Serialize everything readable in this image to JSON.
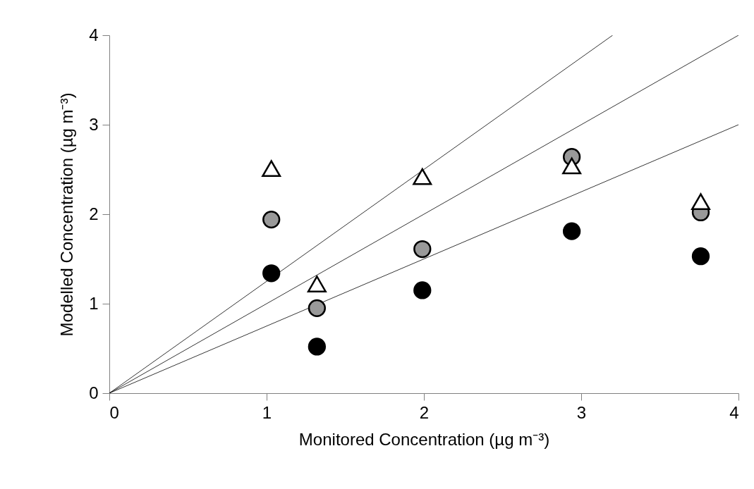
{
  "chart_data": {
    "type": "scatter",
    "xlabel": "Monitored Concentration (µg m⁻³)",
    "ylabel": "Modelled Concentration (µg m⁻³)",
    "xlim": [
      0,
      4
    ],
    "ylim": [
      0,
      4
    ],
    "xticks": [
      0,
      1,
      2,
      3,
      4
    ],
    "yticks": [
      0,
      1,
      2,
      3,
      4
    ],
    "grid": false,
    "series": [
      {
        "type": "line",
        "color": "#000000",
        "x": [
          0,
          3.2
        ],
        "values": [
          0,
          4
        ],
        "line_style": "solid",
        "marker": "none"
      },
      {
        "type": "line",
        "color": "#000000",
        "x": [
          0,
          4
        ],
        "values": [
          0,
          4
        ],
        "line_style": "solid",
        "marker": "none"
      },
      {
        "type": "line",
        "color": "#000000",
        "x": [
          0,
          4
        ],
        "values": [
          0,
          3
        ],
        "line_style": "solid",
        "marker": "none"
      },
      {
        "color": "#999999",
        "marker": "circle",
        "x": [
          1.03,
          1.32,
          1.99,
          2.94,
          3.76
        ],
        "values": [
          1.94,
          0.95,
          1.61,
          2.64,
          2.02
        ]
      },
      {
        "color": "#000000",
        "marker": "circle",
        "x": [
          1.03,
          1.32,
          1.99,
          2.94,
          3.76
        ],
        "values": [
          1.34,
          0.52,
          1.15,
          1.81,
          1.53
        ]
      },
      {
        "color": "#ffffff",
        "marker": "triangle",
        "x": [
          1.03,
          1.32,
          1.99,
          2.94,
          3.76
        ],
        "values": [
          2.51,
          1.22,
          2.42,
          2.54,
          2.14
        ]
      }
    ]
  }
}
